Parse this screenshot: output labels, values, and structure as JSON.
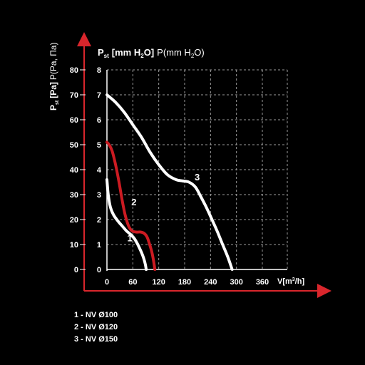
{
  "chart_data": {
    "type": "line",
    "title_main": "P",
    "title_sub": "st",
    "title_unit_main": "[mm H",
    "title_unit_sub": "2",
    "title_unit_end": "O]",
    "title_alt": "P(mm H",
    "title_alt_sub": "2",
    "title_alt_end": "O)",
    "ylabel_main": "P",
    "ylabel_sub": "st",
    "ylabel_unit": "[Pa]",
    "ylabel_alt": "P(Pa, Па)",
    "xlabel": "V[m",
    "xlabel_sup": "3",
    "xlabel_end": "/h]",
    "x_ticks": [
      "0",
      "60",
      "120",
      "180",
      "240",
      "300",
      "360"
    ],
    "y_ticks_pa": [
      "0",
      "10",
      "20",
      "30",
      "40",
      "50",
      "60",
      "70",
      "80"
    ],
    "y_ticks_mm": [
      "0",
      "1",
      "2",
      "3",
      "4",
      "5",
      "6",
      "7",
      "8"
    ],
    "xlim": [
      0,
      420
    ],
    "ylim": [
      0,
      80
    ],
    "grid": true,
    "series": [
      {
        "name": "1",
        "color": "#ffffff",
        "x": [
          0,
          3,
          8,
          15,
          25,
          35,
          45,
          55,
          63,
          70,
          77,
          82,
          86,
          89,
          91
        ],
        "y": [
          36,
          30,
          25,
          22,
          19.5,
          17.5,
          15.5,
          14,
          12.5,
          10.5,
          8,
          6,
          4,
          2,
          0
        ]
      },
      {
        "name": "2",
        "color": "#cc1b22",
        "x": [
          0,
          5,
          12,
          20,
          28,
          35,
          42,
          50,
          58,
          68,
          78,
          86,
          93,
          99,
          104,
          108,
          111
        ],
        "y": [
          51,
          50,
          47.5,
          42,
          35,
          28,
          22,
          17.5,
          15.5,
          15,
          15,
          14.5,
          13,
          10,
          7,
          3.5,
          0
        ]
      },
      {
        "name": "3",
        "color": "#ffffff",
        "x": [
          0,
          20,
          40,
          60,
          80,
          100,
          120,
          140,
          160,
          175,
          190,
          205,
          218,
          230,
          242,
          255,
          268,
          280,
          290
        ],
        "y": [
          70,
          67,
          63,
          58,
          53,
          47,
          42,
          38,
          36,
          35.5,
          35,
          33,
          29,
          25,
          20.5,
          15.5,
          10,
          5,
          0
        ]
      }
    ],
    "curve_labels": [
      "1",
      "2",
      "3"
    ]
  },
  "legend": [
    "1 - NV Ø100",
    "2 - NV Ø120",
    "3 - NV Ø150"
  ]
}
